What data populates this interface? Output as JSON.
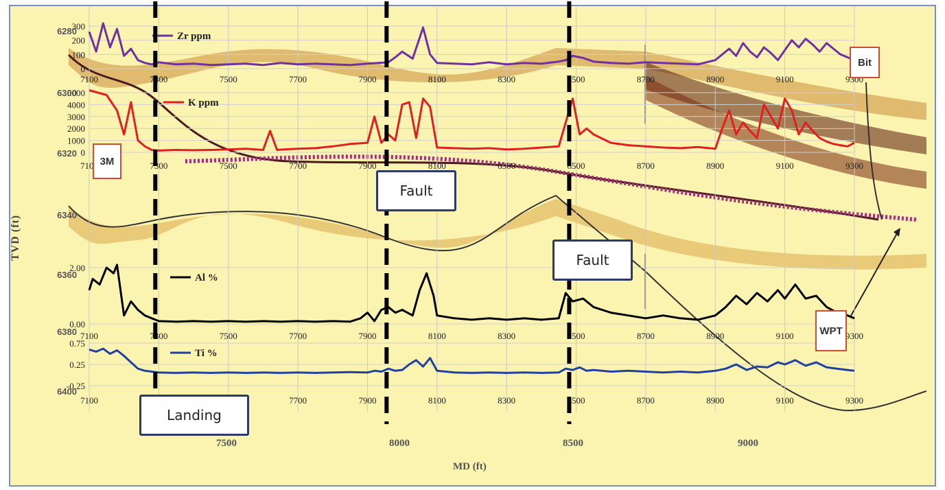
{
  "chart_data": {
    "type": "line",
    "title": "",
    "xlabel": "MD (ft)",
    "ylabel": "TVD (ft)",
    "xlim": [
      7100,
      9300
    ],
    "background": "seismic-style formation model (yellow / brown bands)",
    "panels": [
      {
        "name": "Zr ppm",
        "color": "#7030a0",
        "ylim": [
          0,
          300
        ],
        "yticks": [
          "300",
          "200",
          "100",
          "0"
        ],
        "xticks": [
          "7100",
          "7300",
          "7500",
          "7700",
          "7900",
          "8100",
          "8300",
          "8500",
          "8700",
          "8900",
          "9100",
          "9300"
        ],
        "x": [
          7100,
          7120,
          7140,
          7160,
          7180,
          7200,
          7220,
          7240,
          7260,
          7280,
          7300,
          7350,
          7400,
          7450,
          7500,
          7550,
          7600,
          7650,
          7700,
          7750,
          7800,
          7850,
          7900,
          7930,
          7960,
          7980,
          8000,
          8030,
          8060,
          8080,
          8100,
          8150,
          8200,
          8250,
          8300,
          8350,
          8400,
          8450,
          8470,
          8490,
          8520,
          8550,
          8600,
          8650,
          8700,
          8750,
          8800,
          8850,
          8900,
          8920,
          8940,
          8960,
          8980,
          9000,
          9020,
          9040,
          9060,
          9080,
          9100,
          9120,
          9140,
          9160,
          9180,
          9200,
          9220,
          9240,
          9260,
          9280,
          9300
        ],
        "y": [
          260,
          120,
          320,
          150,
          280,
          90,
          140,
          60,
          40,
          30,
          45,
          30,
          35,
          25,
          30,
          35,
          25,
          40,
          30,
          35,
          30,
          25,
          35,
          40,
          45,
          80,
          120,
          70,
          290,
          100,
          40,
          35,
          30,
          45,
          30,
          40,
          35,
          50,
          60,
          90,
          75,
          50,
          40,
          35,
          45,
          40,
          35,
          30,
          60,
          100,
          140,
          90,
          180,
          120,
          80,
          150,
          110,
          60,
          130,
          200,
          150,
          210,
          170,
          120,
          180,
          140,
          100,
          80,
          60
        ]
      },
      {
        "name": "K ppm",
        "color": "#e02020",
        "ylim": [
          0,
          5000
        ],
        "yticks": [
          "5000",
          "4000",
          "3000",
          "2000",
          "1000",
          "0"
        ],
        "xticks": [
          "7100",
          "7300",
          "7500",
          "7700",
          "7900",
          "8100",
          "8300",
          "8500",
          "8700",
          "8900",
          "9100",
          "9300"
        ],
        "x": [
          7100,
          7150,
          7180,
          7200,
          7220,
          7240,
          7260,
          7280,
          7300,
          7350,
          7400,
          7450,
          7500,
          7550,
          7600,
          7620,
          7640,
          7660,
          7700,
          7750,
          7800,
          7850,
          7900,
          7920,
          7940,
          7960,
          7980,
          8000,
          8020,
          8040,
          8060,
          8080,
          8100,
          8150,
          8200,
          8250,
          8300,
          8350,
          8400,
          8450,
          8470,
          8490,
          8510,
          8530,
          8550,
          8600,
          8650,
          8700,
          8750,
          8800,
          8850,
          8900,
          8920,
          8940,
          8960,
          8980,
          9000,
          9020,
          9040,
          9060,
          9080,
          9100,
          9120,
          9140,
          9160,
          9180,
          9200,
          9220,
          9240,
          9260,
          9280,
          9300
        ],
        "y": [
          5200,
          4800,
          3500,
          1500,
          4200,
          1000,
          500,
          200,
          150,
          200,
          180,
          200,
          250,
          300,
          200,
          1800,
          200,
          250,
          300,
          350,
          500,
          700,
          800,
          3000,
          800,
          1500,
          1000,
          4000,
          4200,
          1200,
          4500,
          3800,
          400,
          350,
          300,
          350,
          250,
          300,
          400,
          500,
          2500,
          4500,
          1500,
          2000,
          1500,
          800,
          600,
          500,
          400,
          350,
          450,
          300,
          2000,
          3500,
          1500,
          2500,
          1800,
          1200,
          4000,
          3000,
          2000,
          4500,
          3500,
          1500,
          2500,
          1800,
          1200,
          900,
          700,
          600,
          500,
          800
        ]
      },
      {
        "name": "Al %",
        "color": "#000000",
        "yticks": [
          "2.00",
          "0.00"
        ],
        "ylim": [
          0,
          2
        ],
        "xticks": [
          "7100",
          "7300",
          "7500",
          "7700",
          "7900",
          "8100",
          "8300",
          "8500",
          "8700",
          "8900",
          "9100",
          "9300"
        ],
        "x": [
          7100,
          7110,
          7130,
          7150,
          7170,
          7180,
          7200,
          7220,
          7240,
          7260,
          7280,
          7300,
          7350,
          7400,
          7450,
          7500,
          7550,
          7600,
          7650,
          7700,
          7750,
          7800,
          7850,
          7880,
          7900,
          7920,
          7940,
          7960,
          7980,
          8000,
          8030,
          8050,
          8070,
          8090,
          8100,
          8150,
          8200,
          8250,
          8300,
          8350,
          8400,
          8450,
          8470,
          8490,
          8520,
          8550,
          8600,
          8650,
          8700,
          8750,
          8800,
          8850,
          8900,
          8930,
          8960,
          8990,
          9020,
          9050,
          9080,
          9100,
          9130,
          9160,
          9190,
          9220,
          9250,
          9280,
          9300
        ],
        "y": [
          1.2,
          1.6,
          1.4,
          2.0,
          1.8,
          2.1,
          0.3,
          0.8,
          0.5,
          0.3,
          0.2,
          0.1,
          0.08,
          0.1,
          0.08,
          0.1,
          0.08,
          0.1,
          0.08,
          0.1,
          0.08,
          0.1,
          0.08,
          0.2,
          0.4,
          0.1,
          0.5,
          0.6,
          0.4,
          0.5,
          0.3,
          1.2,
          1.8,
          1.0,
          0.3,
          0.2,
          0.15,
          0.2,
          0.15,
          0.2,
          0.15,
          0.2,
          1.1,
          0.8,
          0.9,
          0.6,
          0.4,
          0.3,
          0.2,
          0.3,
          0.2,
          0.15,
          0.3,
          0.6,
          1.0,
          0.7,
          1.1,
          0.8,
          1.2,
          0.9,
          1.4,
          0.9,
          1.0,
          0.6,
          0.4,
          0.3,
          0.2
        ]
      },
      {
        "name": "Ti %",
        "color": "#2040a0",
        "yticks": [
          "0.75",
          "0.25",
          "-0.25"
        ],
        "ylim": [
          -0.25,
          0.75
        ],
        "xticks": [
          "7100",
          "7300",
          "7500",
          "7700",
          "7900",
          "8100",
          "8300",
          "8500",
          "8700",
          "8900",
          "9100",
          "9300"
        ],
        "x": [
          7100,
          7120,
          7140,
          7160,
          7180,
          7200,
          7220,
          7240,
          7260,
          7280,
          7300,
          7350,
          7400,
          7450,
          7500,
          7550,
          7600,
          7650,
          7700,
          7750,
          7800,
          7850,
          7900,
          7920,
          7940,
          7960,
          7980,
          8000,
          8020,
          8040,
          8060,
          8080,
          8100,
          8150,
          8200,
          8250,
          8300,
          8350,
          8400,
          8450,
          8470,
          8490,
          8510,
          8530,
          8550,
          8600,
          8650,
          8700,
          8750,
          8800,
          8850,
          8900,
          8930,
          8960,
          8990,
          9020,
          9050,
          9080,
          9100,
          9130,
          9160,
          9190,
          9220,
          9250,
          9280,
          9300
        ],
        "y": [
          0.6,
          0.55,
          0.62,
          0.5,
          0.58,
          0.45,
          0.3,
          0.15,
          0.1,
          0.08,
          0.06,
          0.05,
          0.06,
          0.05,
          0.06,
          0.05,
          0.06,
          0.05,
          0.06,
          0.05,
          0.06,
          0.07,
          0.06,
          0.1,
          0.08,
          0.15,
          0.1,
          0.12,
          0.25,
          0.35,
          0.2,
          0.4,
          0.1,
          0.06,
          0.05,
          0.06,
          0.05,
          0.06,
          0.05,
          0.06,
          0.15,
          0.12,
          0.18,
          0.1,
          0.12,
          0.08,
          0.1,
          0.08,
          0.06,
          0.08,
          0.06,
          0.1,
          0.15,
          0.25,
          0.12,
          0.2,
          0.18,
          0.3,
          0.25,
          0.35,
          0.22,
          0.3,
          0.18,
          0.15,
          0.12,
          0.1
        ]
      }
    ],
    "yticks_tvd": [
      "6280",
      "6300",
      "6320",
      "6340",
      "6360",
      "6380",
      "6400"
    ],
    "xticks_md": [
      "7500",
      "8000",
      "8500",
      "9000"
    ],
    "vertical_markers_md": [
      7290,
      7955,
      8480
    ]
  },
  "annotations": {
    "fault1": "Fault",
    "fault2": "Fault",
    "landing": "Landing",
    "bit": "Bit",
    "wp": "WPT",
    "sm": "3M"
  },
  "labels": {
    "side_axis": "TVD (ft)",
    "bottom_axis": "MD (ft)"
  }
}
